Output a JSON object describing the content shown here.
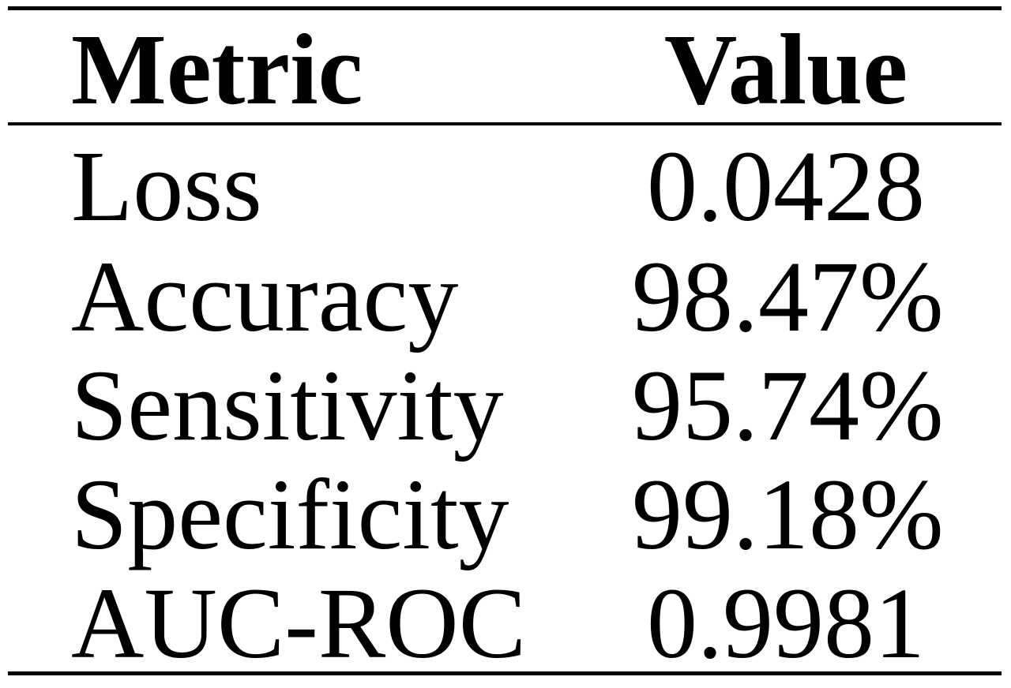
{
  "table": {
    "headers": {
      "metric": "Metric",
      "value": "Value"
    },
    "rows": [
      {
        "metric": "Loss",
        "value": "0.0428"
      },
      {
        "metric": "Accuracy",
        "value": "98.47%"
      },
      {
        "metric": "Sensitivity",
        "value": "95.74%"
      },
      {
        "metric": "Specificity",
        "value": "99.18%"
      },
      {
        "metric": "AUC-ROC",
        "value": "0.9981"
      }
    ]
  }
}
